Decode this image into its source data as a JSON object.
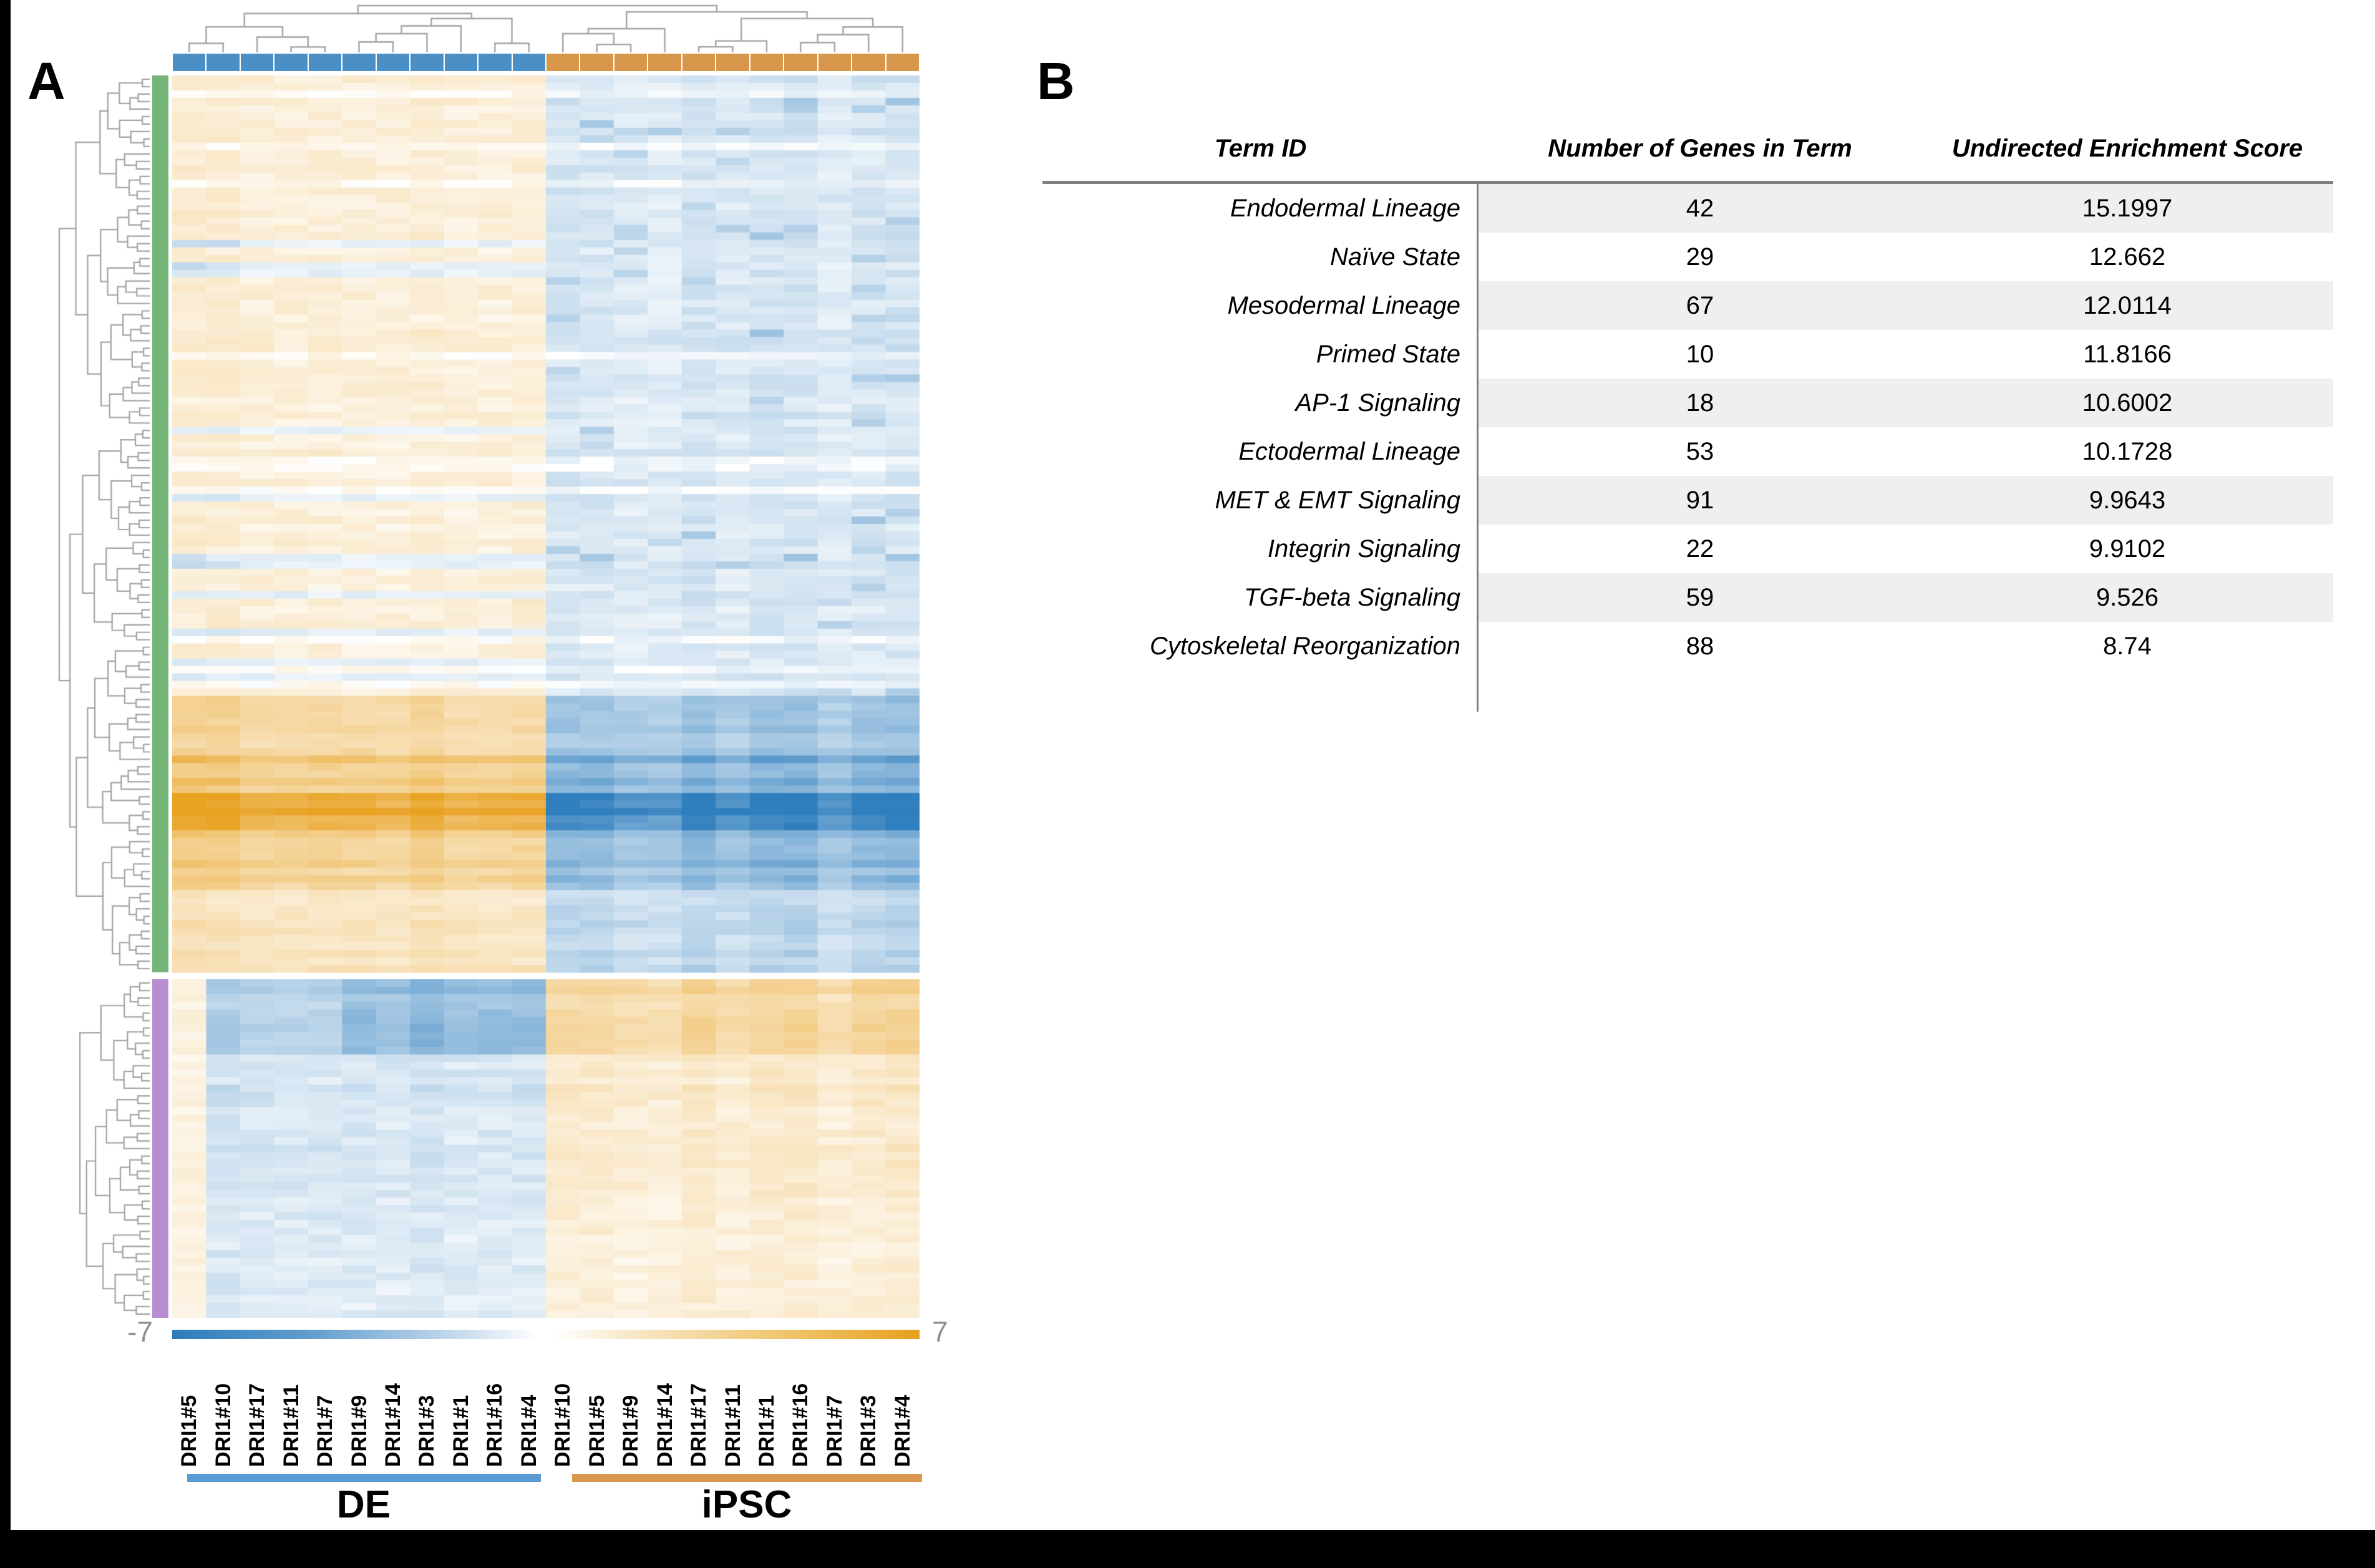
{
  "figure": {
    "panel_a_label": "A",
    "panel_b_label": "B"
  },
  "chart_data": [
    {
      "type": "heatmap",
      "title": "Clustered expression heatmap of DE vs iPSC samples",
      "color_scale": {
        "min": -7,
        "max": 7,
        "min_label": "-7",
        "max_label": "7",
        "negative_color": "#2d7dbb",
        "positive_color": "#e8a01e"
      },
      "column_groups": [
        {
          "name": "DE",
          "annotation_color": "#4a90c7",
          "underline_color": "#5b9bd5",
          "columns": [
            "DRI1#5",
            "DRI1#10",
            "DRI1#17",
            "DRI1#11",
            "DRI1#7",
            "DRI1#9",
            "DRI1#14",
            "DRI1#3",
            "DRI1#1",
            "DRI1#16",
            "DRI1#4"
          ]
        },
        {
          "name": "iPSC",
          "annotation_color": "#d8964b",
          "underline_color": "#d99a4f",
          "columns": [
            "DRI1#10",
            "DRI1#5",
            "DRI1#9",
            "DRI1#14",
            "DRI1#17",
            "DRI1#11",
            "DRI1#1",
            "DRI1#16",
            "DRI1#7",
            "DRI1#3",
            "DRI1#4"
          ]
        }
      ],
      "row_clusters": [
        {
          "name": "row-cluster-1",
          "annotation_color": "#74b476",
          "rows": 120,
          "de_direction": "up",
          "sections": [
            {
              "until": 0.695,
              "magnitude": 0.9
            },
            {
              "until": 0.76,
              "magnitude": 2.2
            },
            {
              "until": 0.8,
              "magnitude": 3.6
            },
            {
              "until": 0.84,
              "magnitude": 5.3
            },
            {
              "until": 0.905,
              "magnitude": 3.0
            },
            {
              "until": 1.0,
              "magnitude": 1.5
            }
          ]
        },
        {
          "name": "row-cluster-2",
          "annotation_color": "#b78fd0",
          "rows": 45,
          "de_direction": "down",
          "sections": [
            {
              "until": 0.22,
              "magnitude": 2.0
            },
            {
              "until": 0.55,
              "magnitude": 1.1
            },
            {
              "until": 1.0,
              "magnitude": 0.85
            }
          ]
        }
      ]
    },
    {
      "type": "table",
      "columns": [
        "Term ID",
        "Number of Genes in Term",
        "Undirected Enrichment Score"
      ],
      "rows": [
        [
          "Endodermal Lineage",
          "42",
          "15.1997"
        ],
        [
          "Naïve State",
          "29",
          "12.662"
        ],
        [
          "Mesodermal Lineage",
          "67",
          "12.0114"
        ],
        [
          "Primed State",
          "10",
          "11.8166"
        ],
        [
          "AP-1 Signaling",
          "18",
          "10.6002"
        ],
        [
          "Ectodermal Lineage",
          "53",
          "10.1728"
        ],
        [
          "MET & EMT Signaling",
          "91",
          "9.9643"
        ],
        [
          "Integrin Signaling",
          "22",
          "9.9102"
        ],
        [
          "TGF-beta Signaling",
          "59",
          "9.526"
        ],
        [
          "Cytoskeletal Reorganization",
          "88",
          "8.74"
        ]
      ]
    }
  ]
}
